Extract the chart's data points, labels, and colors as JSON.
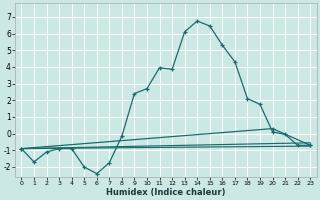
{
  "xlabel": "Humidex (Indice chaleur)",
  "bg_color": "#cce8e5",
  "grid_color": "#ffffff",
  "line_color": "#1a6b6b",
  "xlim": [
    -0.5,
    23.5
  ],
  "ylim": [
    -2.6,
    7.8
  ],
  "yticks": [
    -2,
    -1,
    0,
    1,
    2,
    3,
    4,
    5,
    6,
    7
  ],
  "xticks": [
    0,
    1,
    2,
    3,
    4,
    5,
    6,
    7,
    8,
    9,
    10,
    11,
    12,
    13,
    14,
    15,
    16,
    17,
    18,
    19,
    20,
    21,
    22,
    23
  ],
  "line1_x": [
    0,
    1,
    2,
    3,
    4,
    5,
    6,
    7,
    8,
    9,
    10,
    11,
    12,
    13,
    14,
    15,
    16,
    17,
    18,
    19,
    20,
    21,
    22,
    23
  ],
  "line1_y": [
    -0.9,
    -1.7,
    -1.1,
    -0.9,
    -0.9,
    -2.0,
    -2.4,
    -1.75,
    -0.15,
    2.4,
    2.7,
    3.95,
    3.85,
    6.1,
    6.75,
    6.45,
    5.3,
    4.3,
    2.1,
    1.75,
    0.1,
    -0.05,
    -0.7,
    -0.7
  ],
  "line2_x": [
    0,
    20,
    23
  ],
  "line2_y": [
    -0.9,
    0.3,
    -0.7
  ],
  "line3_x": [
    0,
    23
  ],
  "line3_y": [
    -0.9,
    -0.55
  ],
  "line4_x": [
    0,
    23
  ],
  "line4_y": [
    -0.9,
    -0.75
  ]
}
